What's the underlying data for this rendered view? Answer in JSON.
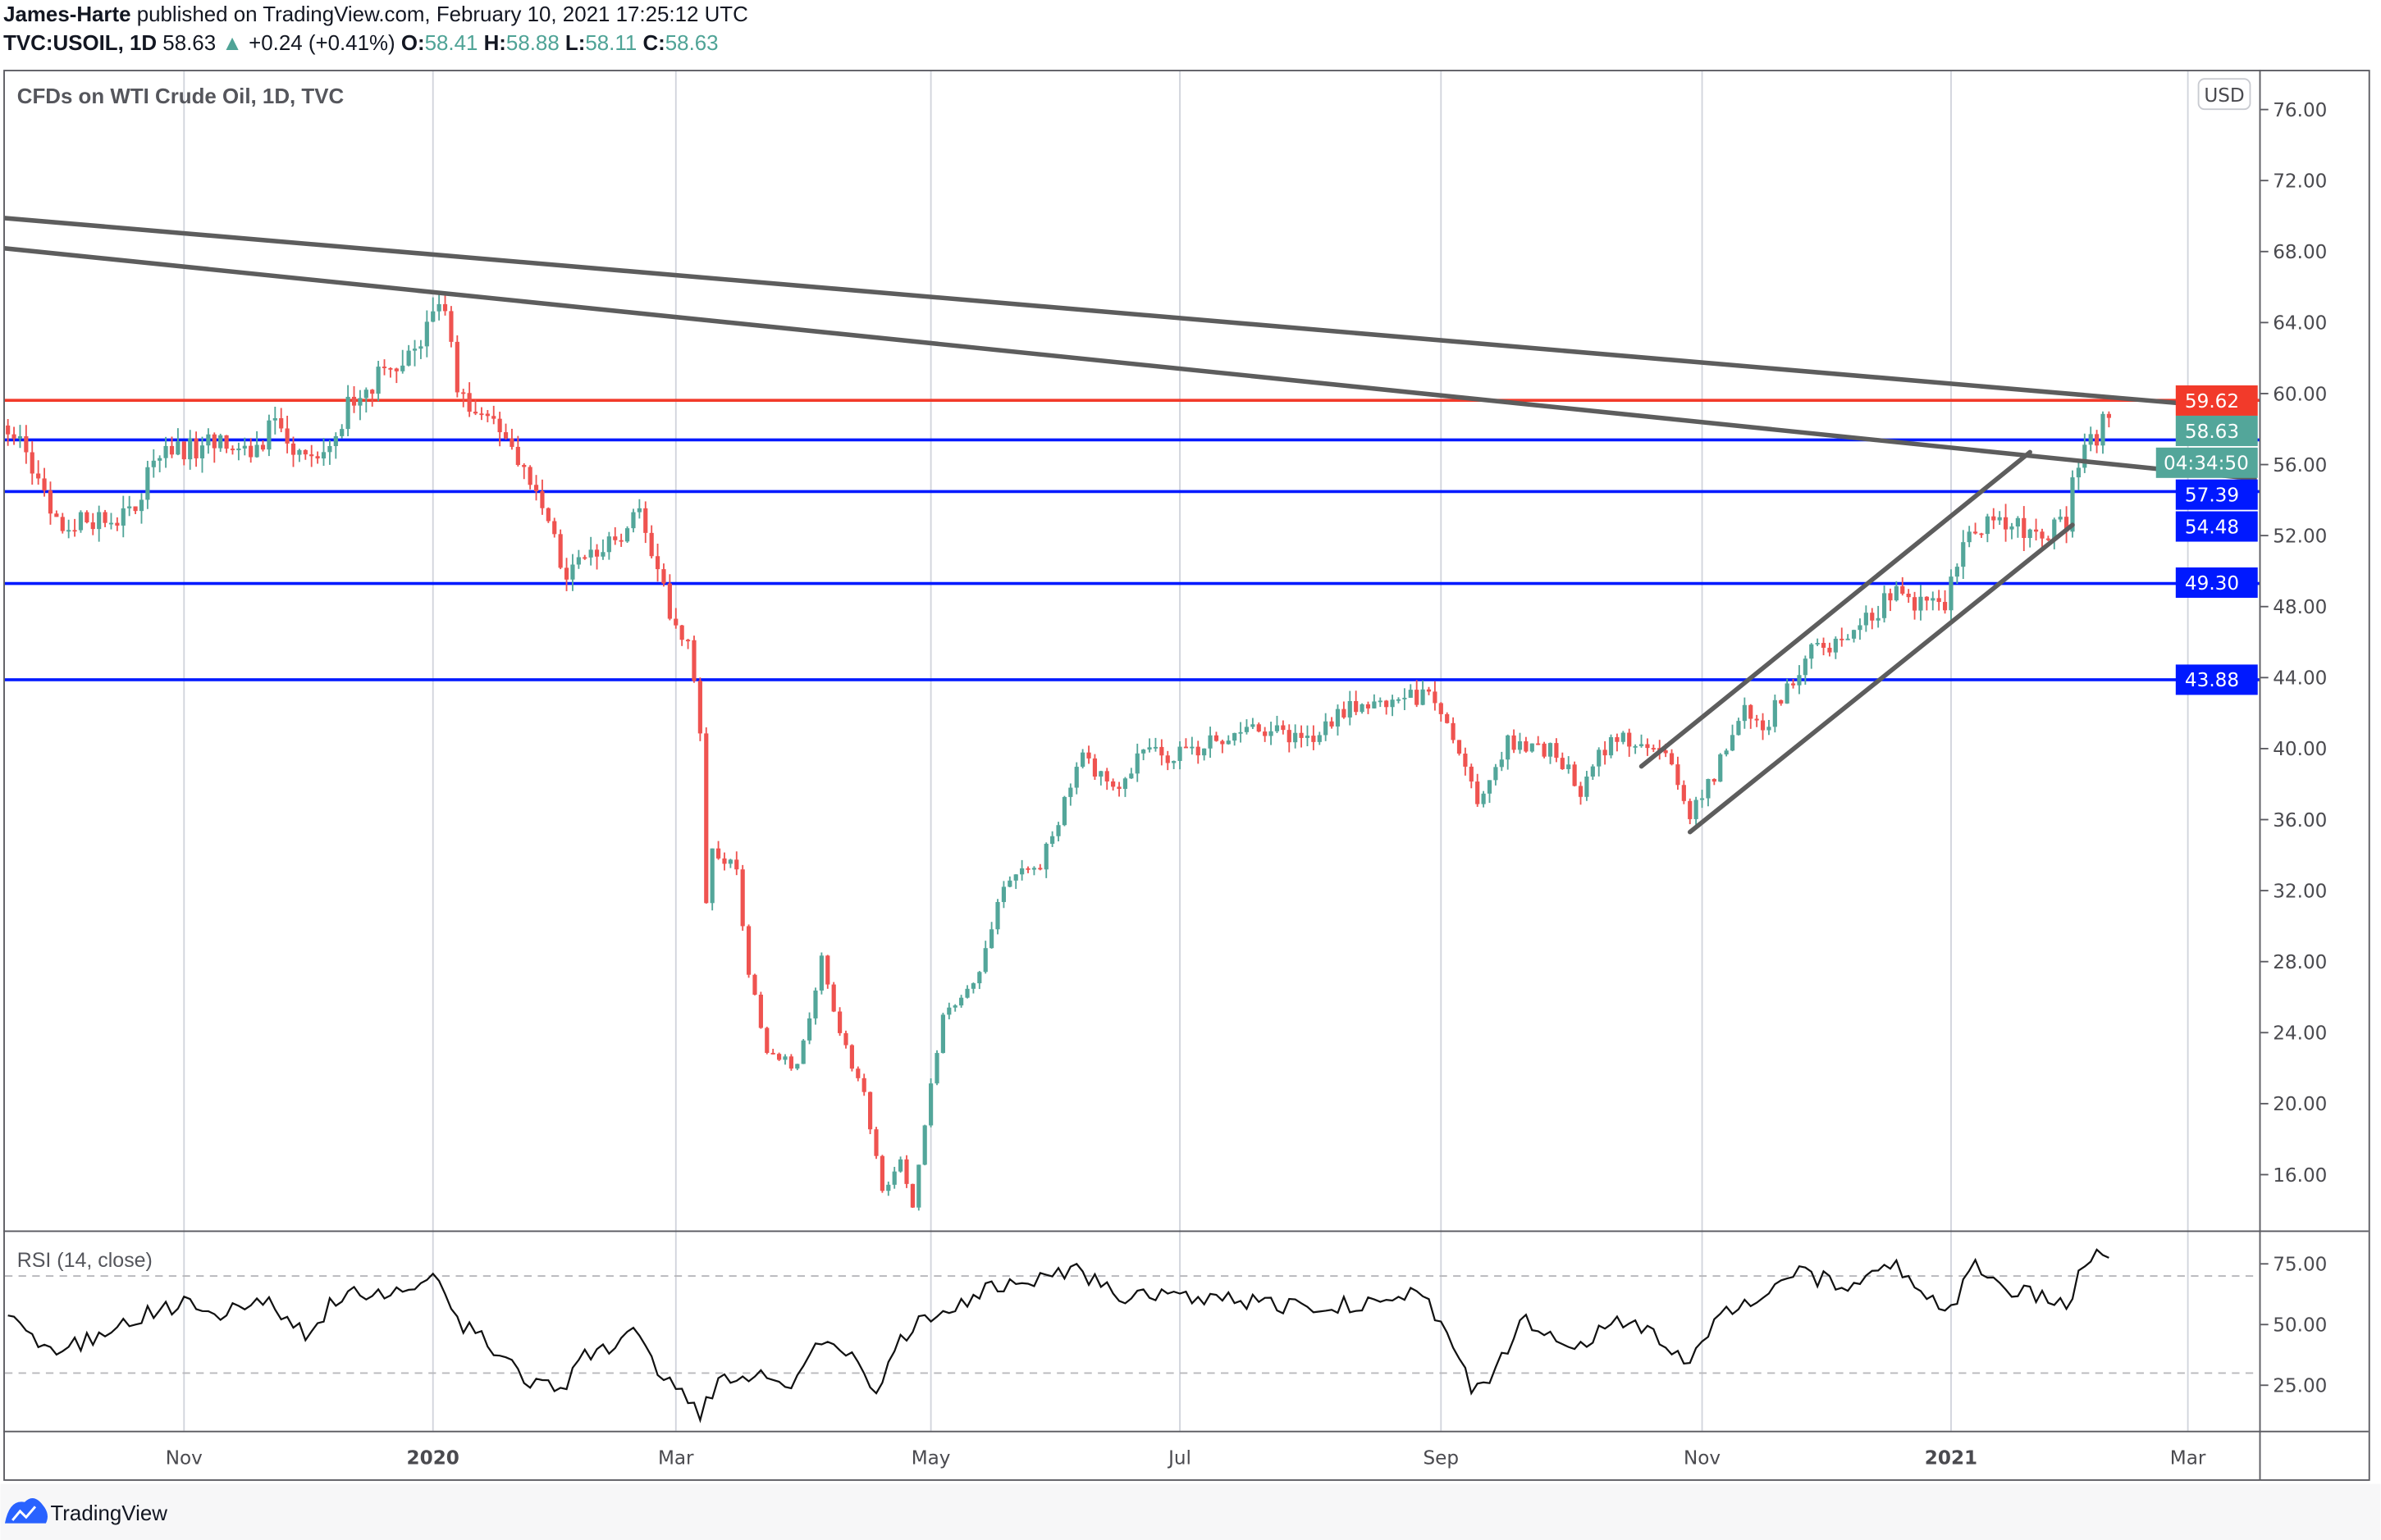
{
  "header": {
    "author": "James-Harte",
    "published": " published on TradingView.com, February 10, 2021 17:25:12 UTC",
    "symbol": "TVC:USOIL, 1D",
    "last": "58.63",
    "change": "+0.24 (+0.41%)",
    "o_label": "O:",
    "o": "58.41",
    "h_label": "H:",
    "h": "58.88",
    "l_label": "L:",
    "l": "58.11",
    "c_label": "C:",
    "c": "58.63"
  },
  "chart_data": {
    "type": "candlestick",
    "title": "CFDs on WTI Crude Oil, 1D, TVC",
    "currency": "USD",
    "ylim": [
      12.3,
      78.3
    ],
    "y_ticks": [
      "16.00",
      "20.00",
      "24.00",
      "28.00",
      "32.00",
      "36.00",
      "40.00",
      "44.00",
      "48.00",
      "52.00",
      "56.00",
      "60.00",
      "64.00",
      "68.00",
      "72.00",
      "76.00"
    ],
    "x_ticks": [
      {
        "label": "Nov",
        "bar": 29,
        "bold": false
      },
      {
        "label": "2020",
        "bar": 70,
        "bold": true
      },
      {
        "label": "Mar",
        "bar": 110,
        "bold": false
      },
      {
        "label": "May",
        "bar": 152,
        "bold": false
      },
      {
        "label": "Jul",
        "bar": 193,
        "bold": false
      },
      {
        "label": "Sep",
        "bar": 236,
        "bold": false
      },
      {
        "label": "Nov",
        "bar": 279,
        "bold": false
      },
      {
        "label": "2021",
        "bar": 320,
        "bold": true
      },
      {
        "label": "Mar",
        "bar": 359,
        "bold": false
      }
    ],
    "close_anchors": [
      [
        0,
        58.2
      ],
      [
        9,
        52.3
      ],
      [
        14,
        53
      ],
      [
        21,
        53
      ],
      [
        24,
        56.5
      ],
      [
        31,
        57
      ],
      [
        41,
        57
      ],
      [
        44,
        58.2
      ],
      [
        49,
        56
      ],
      [
        59,
        60.4
      ],
      [
        66,
        61.7
      ],
      [
        72,
        65
      ],
      [
        74,
        59.5
      ],
      [
        79,
        58.7
      ],
      [
        84,
        56.5
      ],
      [
        88,
        53
      ],
      [
        92,
        50
      ],
      [
        99,
        51.5
      ],
      [
        104,
        53
      ],
      [
        107,
        49.7
      ],
      [
        110,
        47
      ],
      [
        112,
        46
      ],
      [
        114,
        41
      ],
      [
        115,
        31
      ],
      [
        116,
        34.5
      ],
      [
        120,
        33
      ],
      [
        122,
        27.5
      ],
      [
        125,
        23
      ],
      [
        130,
        22
      ],
      [
        134,
        28
      ],
      [
        137,
        24
      ],
      [
        141,
        20.5
      ],
      [
        144,
        15
      ],
      [
        147,
        17
      ],
      [
        149,
        14
      ],
      [
        151,
        19
      ],
      [
        154,
        25
      ],
      [
        159,
        26.5
      ],
      [
        164,
        32.6
      ],
      [
        170,
        33.5
      ],
      [
        174,
        36.9
      ],
      [
        177,
        39.4
      ],
      [
        182,
        37.7
      ],
      [
        187,
        39.8
      ],
      [
        191,
        39.4
      ],
      [
        199,
        40.5
      ],
      [
        207,
        41
      ],
      [
        214,
        40.3
      ],
      [
        219,
        42
      ],
      [
        226,
        42.7
      ],
      [
        232,
        43
      ],
      [
        236,
        42.4
      ],
      [
        239,
        39.4
      ],
      [
        242,
        37.3
      ],
      [
        247,
        40.3
      ],
      [
        254,
        40
      ],
      [
        259,
        37.7
      ],
      [
        264,
        40.7
      ],
      [
        270,
        40.3
      ],
      [
        274,
        39.4
      ],
      [
        277,
        36
      ],
      [
        281,
        38.6
      ],
      [
        286,
        42
      ],
      [
        289,
        41.2
      ],
      [
        294,
        43.7
      ],
      [
        296,
        45.4
      ],
      [
        301,
        45.8
      ],
      [
        307,
        47.6
      ],
      [
        311,
        48.8
      ],
      [
        316,
        48
      ],
      [
        319,
        48.4
      ],
      [
        321,
        50.5
      ],
      [
        325,
        52.7
      ],
      [
        329,
        53
      ],
      [
        334,
        52.2
      ],
      [
        339,
        52.7
      ],
      [
        340,
        54.8
      ],
      [
        342,
        56.5
      ],
      [
        345,
        58.2
      ],
      [
        346,
        58.63
      ]
    ],
    "horizontal_levels": [
      {
        "price": 59.62,
        "label": "59.62",
        "color": "#f23a2a"
      },
      {
        "price": 57.39,
        "label": "57.39",
        "color": "#0019ff"
      },
      {
        "price": 54.48,
        "label": "54.48",
        "color": "#0019ff"
      },
      {
        "price": 49.3,
        "label": "49.30",
        "color": "#0019ff"
      },
      {
        "price": 43.88,
        "label": "43.88",
        "color": "#0019ff"
      }
    ],
    "last_price_label": "58.63",
    "countdown": "04:34:50",
    "trendlines": [
      {
        "from": [
          -1,
          69.9
        ],
        "to": [
          370,
          59.1
        ]
      },
      {
        "from": [
          -1,
          68.2
        ],
        "to": [
          370,
          55.2
        ]
      },
      {
        "from": [
          269,
          39.0
        ],
        "to": [
          333,
          56.7
        ]
      },
      {
        "from": [
          277,
          35.3
        ],
        "to": [
          340,
          52.6
        ]
      }
    ],
    "rsi": {
      "label": "RSI (14, close)",
      "ticks": [
        "25.00",
        "50.00",
        "75.00"
      ],
      "bands": [
        30,
        70
      ],
      "anchors": [
        [
          0,
          55
        ],
        [
          8,
          37.5
        ],
        [
          14,
          45
        ],
        [
          19,
          52
        ],
        [
          29,
          58
        ],
        [
          36,
          55
        ],
        [
          42,
          61
        ],
        [
          49,
          45
        ],
        [
          54,
          61
        ],
        [
          64,
          65
        ],
        [
          71,
          70.6
        ],
        [
          74,
          52
        ],
        [
          79,
          42
        ],
        [
          85,
          27
        ],
        [
          91,
          22
        ],
        [
          94,
          36
        ],
        [
          99,
          40
        ],
        [
          102,
          50
        ],
        [
          109,
          25
        ],
        [
          114,
          14
        ],
        [
          117,
          27
        ],
        [
          124,
          30
        ],
        [
          129,
          27
        ],
        [
          134,
          45
        ],
        [
          139,
          36
        ],
        [
          143,
          19
        ],
        [
          146,
          42
        ],
        [
          151,
          52
        ],
        [
          161,
          64
        ],
        [
          176,
          72
        ],
        [
          184,
          61
        ],
        [
          189,
          63
        ],
        [
          199,
          61
        ],
        [
          214,
          57
        ],
        [
          224,
          59
        ],
        [
          232,
          63
        ],
        [
          236,
          52
        ],
        [
          241,
          24
        ],
        [
          245,
          30
        ],
        [
          249,
          52
        ],
        [
          259,
          40
        ],
        [
          264,
          52
        ],
        [
          271,
          46
        ],
        [
          277,
          33
        ],
        [
          281,
          52
        ],
        [
          286,
          57
        ],
        [
          295,
          70.6
        ],
        [
          304,
          66
        ],
        [
          311,
          74
        ],
        [
          315,
          61
        ],
        [
          320,
          57
        ],
        [
          324,
          74
        ],
        [
          329,
          65
        ],
        [
          335,
          61
        ],
        [
          339,
          58
        ],
        [
          342,
          76
        ],
        [
          346,
          80
        ]
      ]
    },
    "colors": {
      "up": "#53a69a",
      "down": "#ef5350",
      "grid": "#d1d4dc",
      "trend": "#5d5d5d"
    }
  },
  "footer": {
    "brand": "TradingView"
  }
}
